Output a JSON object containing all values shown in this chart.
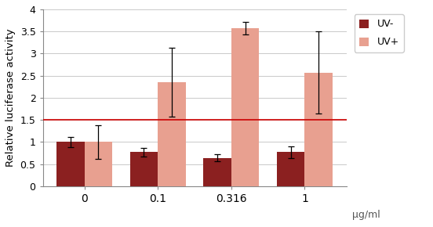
{
  "categories": [
    "0",
    "0.1",
    "0.316",
    "1"
  ],
  "uv_minus_values": [
    1.0,
    0.77,
    0.64,
    0.77
  ],
  "uv_minus_errors": [
    0.12,
    0.1,
    0.08,
    0.13
  ],
  "uv_plus_values": [
    1.0,
    2.36,
    3.57,
    2.57
  ],
  "uv_plus_errors": [
    0.38,
    0.78,
    0.14,
    0.93
  ],
  "uv_minus_color": "#8B2020",
  "uv_plus_color": "#E8A090",
  "bar_width": 0.38,
  "ylim": [
    0,
    4.0
  ],
  "yticks": [
    0,
    0.5,
    1.0,
    1.5,
    2.0,
    2.5,
    3.0,
    3.5,
    4.0
  ],
  "ytick_labels": [
    "0",
    "0.5",
    "1",
    "1.5",
    "2",
    "2.5",
    "3",
    "3.5",
    "4"
  ],
  "ylabel": "Relative luciferase activity",
  "xlabel": "μg/ml",
  "reference_line": 1.5,
  "reference_line_color": "#CC0000",
  "legend_labels": [
    "UV-",
    "UV+"
  ],
  "error_cap_size": 3,
  "background_color": "#ffffff",
  "grid_color": "#c0c0c0"
}
